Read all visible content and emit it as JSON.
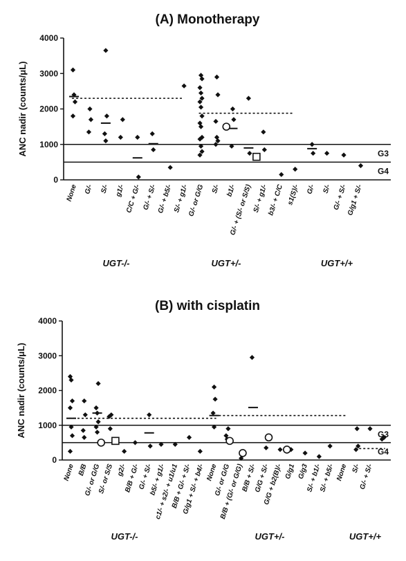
{
  "chart_data": [
    {
      "type": "scatter",
      "title": "(A) Monotherapy",
      "ylabel": "ANC nadir (counts/μL)",
      "ylim": [
        0,
        4000
      ],
      "yticks": [
        0,
        1000,
        2000,
        3000,
        4000
      ],
      "ref_lines": [
        {
          "label": "G3",
          "value": 1000
        },
        {
          "label": "G4",
          "value": 500
        }
      ],
      "groups": [
        {
          "label": "UGT-/-",
          "categories": [
            0,
            5
          ]
        },
        {
          "label": "UGT+/-",
          "categories": [
            6,
            13
          ]
        },
        {
          "label": "UGT+/+",
          "categories": [
            14,
            17
          ]
        }
      ],
      "categories": [
        "None",
        "G/-",
        "S/-",
        "g1/-",
        "C/C + G/-",
        "G/- + S/-",
        "G/- + b5/-",
        "S/- + g1/-",
        "G/- or G/G",
        "S/-",
        "b1/-",
        "G/- + (S/- or S/S)",
        "S/- + g1/-",
        "b3/- + C/C",
        "s1(S)/-",
        "G/-",
        "S/-",
        "G/- + S/-",
        "G/g1 + S/-"
      ],
      "mean_line": {
        "xrange": [
          0,
          6.8
        ],
        "value": 2300
      },
      "mean_line_2": {
        "xrange": [
          8,
          13.7
        ],
        "value": 1880
      },
      "medians": [
        {
          "x": 0,
          "value": 2350
        },
        {
          "x": 2,
          "value": 1600
        },
        {
          "x": 4,
          "value": 620
        },
        {
          "x": 5,
          "value": 1020
        },
        {
          "x": 10,
          "value": 1450
        },
        {
          "x": 11,
          "value": 900
        },
        {
          "x": 15,
          "value": 880
        }
      ],
      "points": [
        {
          "x": 0,
          "y": 3100
        },
        {
          "x": 0,
          "y": 2400
        },
        {
          "x": 0,
          "y": 2200
        },
        {
          "x": 0,
          "y": 1800
        },
        {
          "x": 1,
          "y": 2000
        },
        {
          "x": 1,
          "y": 1700
        },
        {
          "x": 1,
          "y": 1350
        },
        {
          "x": 2,
          "y": 3650
        },
        {
          "x": 2,
          "y": 1800
        },
        {
          "x": 2,
          "y": 1300
        },
        {
          "x": 2,
          "y": 1100
        },
        {
          "x": 3,
          "y": 1700
        },
        {
          "x": 3,
          "y": 1200
        },
        {
          "x": 4,
          "y": 1200
        },
        {
          "x": 4,
          "y": 80
        },
        {
          "x": 5,
          "y": 1300
        },
        {
          "x": 5,
          "y": 850
        },
        {
          "x": 6,
          "y": 350
        },
        {
          "x": 7,
          "y": 2650
        },
        {
          "x": 8,
          "y": 2950
        },
        {
          "x": 8,
          "y": 2850
        },
        {
          "x": 8,
          "y": 2600
        },
        {
          "x": 8,
          "y": 2450
        },
        {
          "x": 8,
          "y": 2300
        },
        {
          "x": 8,
          "y": 2200
        },
        {
          "x": 8,
          "y": 2050
        },
        {
          "x": 8,
          "y": 1800
        },
        {
          "x": 8,
          "y": 1600
        },
        {
          "x": 8,
          "y": 1500
        },
        {
          "x": 8,
          "y": 1200
        },
        {
          "x": 8,
          "y": 1150
        },
        {
          "x": 8,
          "y": 950
        },
        {
          "x": 8,
          "y": 800
        },
        {
          "x": 8,
          "y": 700
        },
        {
          "x": 9,
          "y": 2900
        },
        {
          "x": 9,
          "y": 2400
        },
        {
          "x": 9,
          "y": 1650
        },
        {
          "x": 9,
          "y": 1200
        },
        {
          "x": 9,
          "y": 1100
        },
        {
          "x": 9,
          "y": 1000
        },
        {
          "x": 10,
          "y": 2000
        },
        {
          "x": 10,
          "y": 1700
        },
        {
          "x": 10,
          "y": 950
        },
        {
          "x": 11,
          "y": 2300
        },
        {
          "x": 11,
          "y": 750
        },
        {
          "x": 12,
          "y": 1350
        },
        {
          "x": 12,
          "y": 850
        },
        {
          "x": 13,
          "y": 150
        },
        {
          "x": 14,
          "y": 300
        },
        {
          "x": 15,
          "y": 1000
        },
        {
          "x": 15,
          "y": 750
        },
        {
          "x": 16,
          "y": 750
        },
        {
          "x": 17,
          "y": 700
        },
        {
          "x": 18,
          "y": 400
        }
      ],
      "open_points": [
        {
          "x": 9.6,
          "y": 1500,
          "shape": "circle"
        },
        {
          "x": 11.5,
          "y": 650,
          "shape": "square"
        }
      ]
    },
    {
      "type": "scatter",
      "title": "(B) with cisplatin",
      "ylabel": "ANC nadir (counts/μL)",
      "ylim": [
        0,
        4000
      ],
      "yticks": [
        0,
        1000,
        2000,
        3000,
        4000
      ],
      "ref_lines": [
        {
          "label": "G3",
          "value": 1000
        },
        {
          "label": "G4",
          "value": 500
        }
      ],
      "groups": [
        {
          "label": "UGT-/-",
          "categories": [
            0,
            11
          ]
        },
        {
          "label": "UGT+/-",
          "categories": [
            12,
            21
          ]
        },
        {
          "label": "UGT+/+",
          "categories": [
            22,
            24
          ]
        }
      ],
      "categories": [
        "None",
        "B/B",
        "G/- or G/G",
        "S/- or S/S",
        "g2/-",
        "B/B + G/-",
        "G/- + S/-",
        "b5/- + g1/-",
        "c1/- + s2/- + u1/u1",
        "B/B + G/- + S/-",
        "G/g1 + S/- + b4/-",
        "None",
        "G/- or G/G",
        "B/B + (G/- or G/G)",
        "B/B + S/-",
        "G/G + S/-",
        "G/G + b2(B)/-",
        "G/g1",
        "G/g3",
        "S/- + b1/-",
        "S/- + b5/-",
        "None",
        "S/-",
        "G/- + S/-"
      ],
      "mean_line": {
        "xrange": [
          0,
          11
        ],
        "value": 1200
      },
      "mean_line_2": {
        "xrange": [
          11.2,
          21
        ],
        "value": 1280
      },
      "mean_line_3": {
        "xrange": [
          22,
          24
        ],
        "value": 330
      },
      "medians": [
        {
          "x": 0,
          "value": 1200
        },
        {
          "x": 2,
          "value": 1350
        },
        {
          "x": 6,
          "value": 780
        },
        {
          "x": 11,
          "value": 1280
        },
        {
          "x": 14,
          "value": 1510
        }
      ],
      "points": [
        {
          "x": 0,
          "y": 2400
        },
        {
          "x": 0,
          "y": 2300
        },
        {
          "x": 0,
          "y": 1700
        },
        {
          "x": 0,
          "y": 1500
        },
        {
          "x": 0,
          "y": 950
        },
        {
          "x": 0,
          "y": 700
        },
        {
          "x": 0,
          "y": 250
        },
        {
          "x": 1,
          "y": 1700
        },
        {
          "x": 1,
          "y": 1300
        },
        {
          "x": 1,
          "y": 850
        },
        {
          "x": 1,
          "y": 650
        },
        {
          "x": 2,
          "y": 2200
        },
        {
          "x": 2,
          "y": 1500
        },
        {
          "x": 2,
          "y": 1350
        },
        {
          "x": 2,
          "y": 1100
        },
        {
          "x": 2,
          "y": 950
        },
        {
          "x": 2,
          "y": 800
        },
        {
          "x": 3,
          "y": 1300
        },
        {
          "x": 3,
          "y": 1250
        },
        {
          "x": 3,
          "y": 900
        },
        {
          "x": 4,
          "y": 250
        },
        {
          "x": 5,
          "y": 500
        },
        {
          "x": 6,
          "y": 1300
        },
        {
          "x": 6,
          "y": 400
        },
        {
          "x": 7,
          "y": 450
        },
        {
          "x": 8,
          "y": 450
        },
        {
          "x": 9,
          "y": 650
        },
        {
          "x": 10,
          "y": 250
        },
        {
          "x": 11,
          "y": 2100
        },
        {
          "x": 11,
          "y": 1750
        },
        {
          "x": 11,
          "y": 1350
        },
        {
          "x": 11,
          "y": 950
        },
        {
          "x": 12,
          "y": 900
        },
        {
          "x": 12,
          "y": 700
        },
        {
          "x": 12,
          "y": 600
        },
        {
          "x": 13,
          "y": 50
        },
        {
          "x": 14,
          "y": 2950
        },
        {
          "x": 15,
          "y": 350
        },
        {
          "x": 16,
          "y": 300
        },
        {
          "x": 17,
          "y": 300
        },
        {
          "x": 18,
          "y": 200
        },
        {
          "x": 19,
          "y": 100
        },
        {
          "x": 20,
          "y": 400
        },
        {
          "x": 22,
          "y": 900
        },
        {
          "x": 22,
          "y": 400
        },
        {
          "x": 22,
          "y": 300
        },
        {
          "x": 23,
          "y": 900
        },
        {
          "x": 24,
          "y": 650
        },
        {
          "x": 24,
          "y": 600
        }
      ],
      "open_points": [
        {
          "x": 2.3,
          "y": 500,
          "shape": "circle"
        },
        {
          "x": 3.4,
          "y": 550,
          "shape": "square"
        },
        {
          "x": 12.2,
          "y": 550,
          "shape": "circle"
        },
        {
          "x": 13.2,
          "y": 200,
          "shape": "circle"
        },
        {
          "x": 15.2,
          "y": 650,
          "shape": "circle"
        },
        {
          "x": 16.6,
          "y": 300,
          "shape": "circle"
        }
      ]
    }
  ]
}
